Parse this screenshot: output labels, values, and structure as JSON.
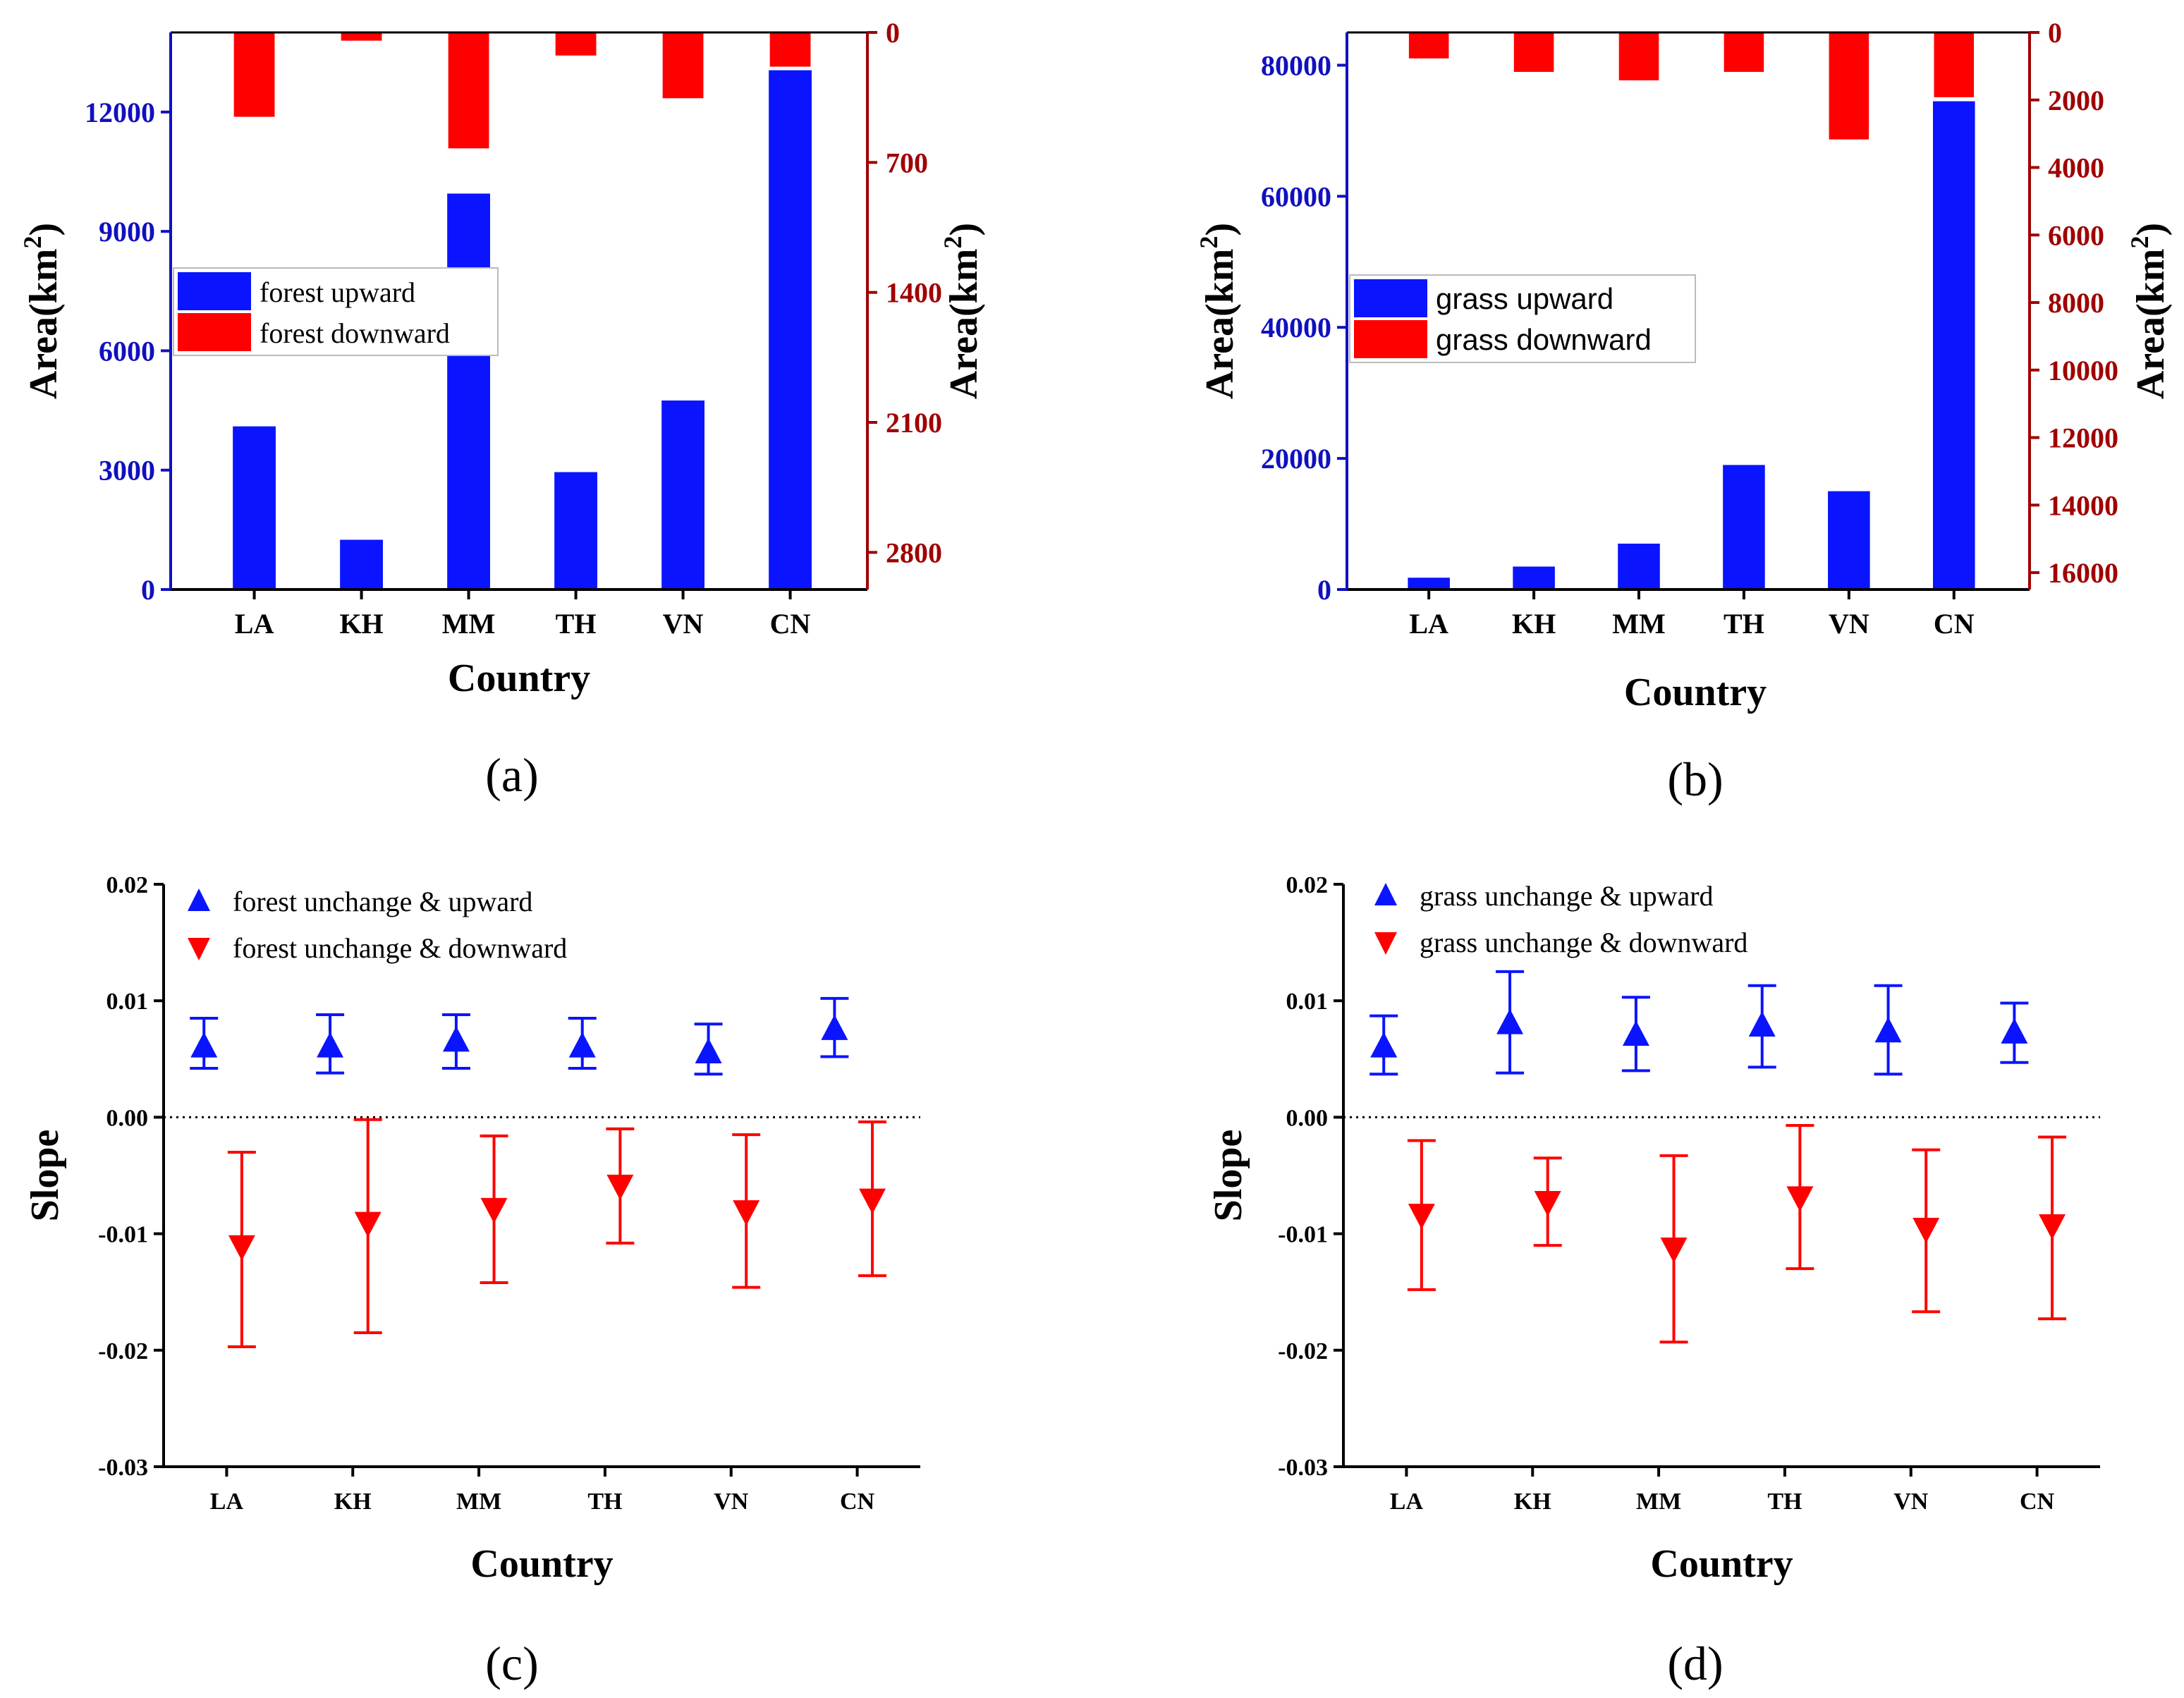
{
  "colors": {
    "blue": "#0a14ff",
    "red": "#ff0000",
    "left_axis": "#1010c0",
    "right_axis": "#a00000"
  },
  "chart_data": [
    {
      "id": "a",
      "type": "bar",
      "panel_label": "(a)",
      "categories": [
        "LA",
        "KH",
        "MM",
        "TH",
        "VN",
        "CN"
      ],
      "xlabel": "Country",
      "ylabel_left": "Area(km",
      "ylabel_right": "Area(km",
      "ylabel_sup": "2",
      "ylabel_close": ")",
      "left_axis": {
        "ylim": [
          0,
          14000
        ],
        "ticks": [
          0,
          3000,
          6000,
          9000,
          12000
        ]
      },
      "right_axis": {
        "ylim": [
          0,
          3000
        ],
        "inverted": true,
        "ticks": [
          0,
          700,
          1400,
          2100,
          2800
        ]
      },
      "series": [
        {
          "name": "forest upward",
          "axis": "left",
          "values": [
            4100,
            1250,
            9950,
            2950,
            4750,
            13050
          ]
        },
        {
          "name": "forest downward",
          "axis": "right",
          "values": [
            460,
            50,
            630,
            130,
            360,
            190
          ]
        }
      ]
    },
    {
      "id": "b",
      "type": "bar",
      "panel_label": "(b)",
      "categories": [
        "LA",
        "KH",
        "MM",
        "TH",
        "VN",
        "CN"
      ],
      "xlabel": "Country",
      "ylabel_left": "Area(km",
      "ylabel_right": "Area(km",
      "ylabel_sup": "2",
      "ylabel_close": ")",
      "left_axis": {
        "ylim": [
          0,
          85000
        ],
        "ticks": [
          0,
          20000,
          40000,
          60000,
          80000
        ]
      },
      "right_axis": {
        "ylim": [
          0,
          16500
        ],
        "inverted": true,
        "ticks": [
          0,
          2000,
          4000,
          6000,
          8000,
          10000,
          12000,
          14000,
          16000
        ]
      },
      "series": [
        {
          "name": "grass upward",
          "axis": "left",
          "values": [
            1800,
            3500,
            7000,
            19000,
            15000,
            74500
          ]
        },
        {
          "name": "grass downward",
          "axis": "right",
          "values": [
            800,
            1200,
            1450,
            1200,
            3200,
            1950
          ]
        }
      ]
    },
    {
      "id": "c",
      "type": "scatter",
      "panel_label": "(c)",
      "categories": [
        "LA",
        "KH",
        "MM",
        "TH",
        "VN",
        "CN"
      ],
      "xlabel": "Country",
      "ylabel": "Slope",
      "ylim": [
        -0.03,
        0.02
      ],
      "ticks": [
        "0.02",
        "0.01",
        "0.00",
        "-0.01",
        "-0.02",
        "-0.03"
      ],
      "series": [
        {
          "name": "forest unchange & upward",
          "marker": "triangle-up",
          "values": [
            0.006,
            0.006,
            0.0065,
            0.006,
            0.0055,
            0.0075
          ],
          "err_low": [
            0.0042,
            0.0038,
            0.0042,
            0.0042,
            0.0037,
            0.0052
          ],
          "err_high": [
            0.0085,
            0.0088,
            0.0088,
            0.0085,
            0.008,
            0.0102
          ]
        },
        {
          "name": "forest unchange & downward",
          "marker": "triangle-down",
          "values": [
            -0.011,
            -0.009,
            -0.0078,
            -0.0058,
            -0.008,
            -0.007
          ],
          "err_low": [
            -0.0197,
            -0.0185,
            -0.0142,
            -0.0108,
            -0.0146,
            -0.0136
          ],
          "err_high": [
            -0.003,
            -0.0002,
            -0.0016,
            -0.001,
            -0.0015,
            -0.0004
          ]
        }
      ]
    },
    {
      "id": "d",
      "type": "scatter",
      "panel_label": "(d)",
      "categories": [
        "LA",
        "KH",
        "MM",
        "TH",
        "VN",
        "CN"
      ],
      "xlabel": "Country",
      "ylabel": "Slope",
      "ylim": [
        -0.03,
        0.02
      ],
      "ticks": [
        "0.02",
        "0.01",
        "0.00",
        "-0.01",
        "-0.02",
        "-0.03"
      ],
      "series": [
        {
          "name": "grass unchange & upward",
          "marker": "triangle-up",
          "values": [
            0.006,
            0.008,
            0.007,
            0.0078,
            0.0073,
            0.0072
          ],
          "err_low": [
            0.0037,
            0.0038,
            0.004,
            0.0043,
            0.0037,
            0.0047
          ],
          "err_high": [
            0.0087,
            0.0125,
            0.0103,
            0.0113,
            0.0113,
            0.0098
          ]
        },
        {
          "name": "grass unchange & downward",
          "marker": "triangle-down",
          "values": [
            -0.0083,
            -0.0072,
            -0.0112,
            -0.0068,
            -0.0095,
            -0.0092
          ],
          "err_low": [
            -0.0148,
            -0.011,
            -0.0193,
            -0.013,
            -0.0167,
            -0.0173
          ],
          "err_high": [
            -0.002,
            -0.0035,
            -0.0033,
            -0.0007,
            -0.0028,
            -0.0017
          ]
        }
      ]
    }
  ]
}
